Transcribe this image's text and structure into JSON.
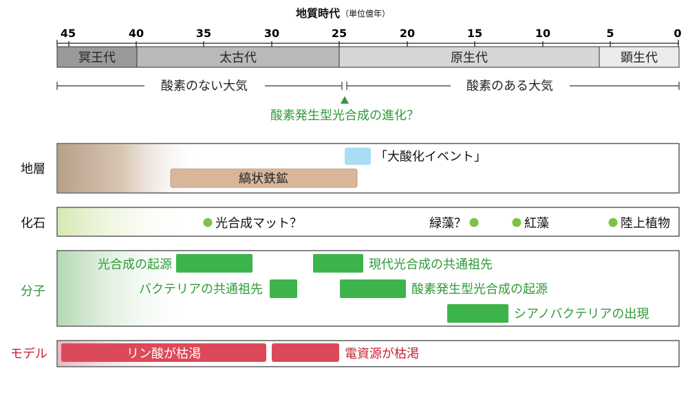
{
  "title": "地質時代",
  "title_unit": "（単位億年）",
  "ticks": [
    "45",
    "40",
    "35",
    "30",
    "25",
    "20",
    "15",
    "10",
    "5",
    "0"
  ],
  "eons": [
    {
      "name": "冥王代",
      "color": "#9a9a9a"
    },
    {
      "name": "太古代",
      "color": "#b9b9b9"
    },
    {
      "name": "原生代",
      "color": "#d6d6d6"
    },
    {
      "name": "顕生代",
      "color": "#ebebeb"
    }
  ],
  "atmosphere": {
    "anoxic": "酸素のない大気",
    "oxic": "酸素のある大気",
    "photosynthesis_evolution": "酸素発生型光合成の進化？"
  },
  "rows": {
    "strata": "地層",
    "fossils": "化石",
    "molecules": "分子",
    "models": "モデル"
  },
  "strata": {
    "goe": "「大酸化イベント」",
    "bif": "縞状鉄鉱"
  },
  "fossils": {
    "mats": "光合成マット？",
    "green_algae": "緑藻？",
    "red_algae": "紅藻",
    "land_plants": "陸上植物"
  },
  "molecules": {
    "photo_origin": "光合成の起源",
    "modern_ancestor": "現代光合成の共通祖先",
    "bacteria_ancestor": "バクテリアの共通祖先",
    "oxy_origin": "酸素発生型光合成の起源",
    "cyano": "シアノバクテリアの出現"
  },
  "models": {
    "phosphate": "リン酸が枯渇",
    "electron": "電資源が枯渇"
  },
  "colors": {
    "green_text": "#2e9a36",
    "green_bar": "#3cb44b",
    "green_dot": "#7dc242",
    "red_text": "#c8202f",
    "red_bar": "#dc4a5a",
    "bif": "#d8b69a",
    "goe": "#a9ddf5"
  }
}
